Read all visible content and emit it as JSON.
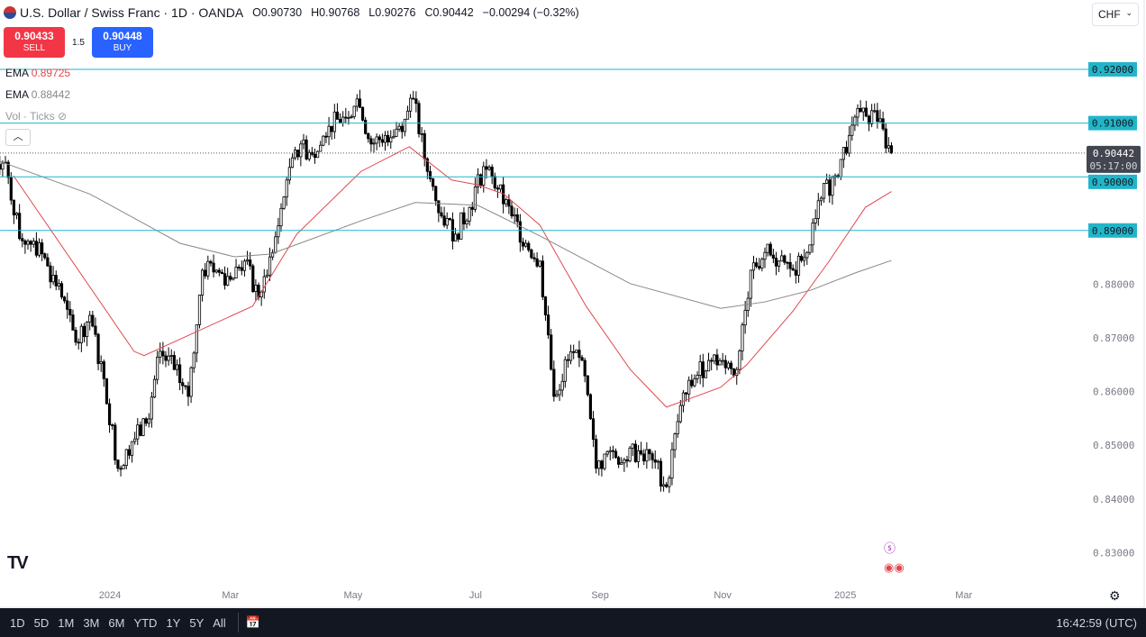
{
  "header": {
    "title": "U.S. Dollar / Swiss Franc · 1D · OANDA",
    "open": "O0.90730",
    "high": "H0.90768",
    "low": "L0.90276",
    "close": "C0.90442",
    "change": "−0.00294 (−0.32%)"
  },
  "trade": {
    "sell_price": "0.90433",
    "sell_label": "SELL",
    "spread": "1.5",
    "buy_price": "0.90448",
    "buy_label": "BUY"
  },
  "legend": {
    "ema1_label": "EMA",
    "ema1_value": "0.89725",
    "ema2_label": "EMA",
    "ema2_value": "0.88442",
    "vol_label": "Vol · Ticks"
  },
  "currency": "CHF",
  "bottom": {
    "ranges": [
      "1D",
      "5D",
      "1M",
      "3M",
      "6M",
      "YTD",
      "1Y",
      "5Y",
      "All"
    ],
    "clock": "16:42:59 (UTC)"
  },
  "colors": {
    "level_line": "#22b5c9",
    "ema_fast": "#e0474f",
    "ema_slow": "#888888",
    "price_label_bg": "#434651",
    "toolbar": "#131722"
  },
  "chart_data": {
    "type": "candlestick",
    "symbol": "USDCHF",
    "ylim": [
      0.826,
      0.924
    ],
    "y_ticks": [
      "0.92000",
      "0.91000",
      "0.90000",
      "0.89000",
      "0.88000",
      "0.87000",
      "0.86000",
      "0.85000",
      "0.84000",
      "0.83000"
    ],
    "x_ticks": [
      {
        "label": "2024",
        "date": "2024-01-01"
      },
      {
        "label": "Mar",
        "date": "2024-03-01"
      },
      {
        "label": "May",
        "date": "2024-05-01"
      },
      {
        "label": "Jul",
        "date": "2024-07-01"
      },
      {
        "label": "Sep",
        "date": "2024-09-01"
      },
      {
        "label": "Nov",
        "date": "2024-11-01"
      },
      {
        "label": "2025",
        "date": "2025-01-01"
      },
      {
        "label": "Mar",
        "date": "2025-03-01"
      }
    ],
    "horizontal_levels": [
      "0.92000",
      "0.91000",
      "0.90000",
      "0.89000"
    ],
    "last_price": "0.90442",
    "countdown": "05:17:00",
    "weekly_dates": [
      "2023-11-10",
      "2023-11-17",
      "2023-11-24",
      "2023-12-01",
      "2023-12-08",
      "2023-12-15",
      "2023-12-22",
      "2023-12-29",
      "2024-01-05",
      "2024-01-12",
      "2024-01-19",
      "2024-01-26",
      "2024-02-02",
      "2024-02-09",
      "2024-02-16",
      "2024-02-23",
      "2024-03-01",
      "2024-03-08",
      "2024-03-15",
      "2024-03-22",
      "2024-03-29",
      "2024-04-05",
      "2024-04-12",
      "2024-04-19",
      "2024-04-26",
      "2024-05-03",
      "2024-05-10",
      "2024-05-17",
      "2024-05-24",
      "2024-05-31",
      "2024-06-07",
      "2024-06-14",
      "2024-06-21",
      "2024-06-28",
      "2024-07-05",
      "2024-07-12",
      "2024-07-19",
      "2024-07-26",
      "2024-08-02",
      "2024-08-09",
      "2024-08-16",
      "2024-08-23",
      "2024-08-30",
      "2024-09-06",
      "2024-09-13",
      "2024-09-20",
      "2024-09-27",
      "2024-10-04",
      "2024-10-11",
      "2024-10-18",
      "2024-10-25",
      "2024-11-01",
      "2024-11-08",
      "2024-11-15",
      "2024-11-22",
      "2024-11-29",
      "2024-12-06",
      "2024-12-13",
      "2024-12-20",
      "2024-12-27",
      "2025-01-03",
      "2025-01-10",
      "2025-01-17",
      "2025-01-24"
    ],
    "weekly_close": [
      0.9027,
      0.8885,
      0.888,
      0.8834,
      0.8776,
      0.8692,
      0.8742,
      0.8624,
      0.8457,
      0.8507,
      0.8541,
      0.8675,
      0.8641,
      0.8591,
      0.8826,
      0.8826,
      0.8809,
      0.8843,
      0.8776,
      0.8859,
      0.8994,
      0.9061,
      0.9036,
      0.9094,
      0.9111,
      0.9145,
      0.9061,
      0.9077,
      0.9094,
      0.9145,
      0.901,
      0.8927,
      0.8893,
      0.8943,
      0.9019,
      0.8977,
      0.8927,
      0.8876,
      0.8843,
      0.8591,
      0.8658,
      0.8658,
      0.8457,
      0.849,
      0.8473,
      0.849,
      0.8473,
      0.8423,
      0.8574,
      0.8624,
      0.8658,
      0.8658,
      0.8641,
      0.8826,
      0.8859,
      0.8843,
      0.8826,
      0.8859,
      0.896,
      0.9002,
      0.9077,
      0.9128,
      0.9103,
      0.90442
    ],
    "series": [
      {
        "name": "EMA",
        "value": "0.89725",
        "points": [
          [
            "2023-11-14",
            0.9002
          ],
          [
            "2024-01-13",
            0.8675
          ],
          [
            "2024-01-18",
            0.8667
          ],
          [
            "2024-03-12",
            0.8759
          ],
          [
            "2024-04-03",
            0.8893
          ],
          [
            "2024-05-05",
            0.901
          ],
          [
            "2024-05-29",
            0.9056
          ],
          [
            "2024-06-19",
            0.8994
          ],
          [
            "2024-07-02",
            0.8985
          ],
          [
            "2024-07-15",
            0.8968
          ],
          [
            "2024-08-02",
            0.891
          ],
          [
            "2024-08-25",
            0.8759
          ],
          [
            "2024-09-16",
            0.8641
          ],
          [
            "2024-10-04",
            0.8571
          ],
          [
            "2024-10-31",
            0.8608
          ],
          [
            "2024-11-13",
            0.865
          ],
          [
            "2024-12-06",
            0.875
          ],
          [
            "2024-12-24",
            0.8843
          ],
          [
            "2025-01-11",
            0.8943
          ],
          [
            "2025-01-24",
            0.89725
          ]
        ]
      },
      {
        "name": "EMA",
        "value": "0.88442",
        "points": [
          [
            "2023-11-07",
            0.9029
          ],
          [
            "2023-12-22",
            0.8968
          ],
          [
            "2024-02-05",
            0.8876
          ],
          [
            "2024-03-03",
            0.8851
          ],
          [
            "2024-03-21",
            0.8856
          ],
          [
            "2024-05-05",
            0.8918
          ],
          [
            "2024-06-01",
            0.8952
          ],
          [
            "2024-07-02",
            0.8947
          ],
          [
            "2024-08-02",
            0.889
          ],
          [
            "2024-09-16",
            0.8801
          ],
          [
            "2024-10-31",
            0.8755
          ],
          [
            "2024-11-22",
            0.8767
          ],
          [
            "2024-12-15",
            0.8789
          ],
          [
            "2025-01-06",
            0.8821
          ],
          [
            "2025-01-24",
            0.88442
          ]
        ]
      }
    ]
  }
}
